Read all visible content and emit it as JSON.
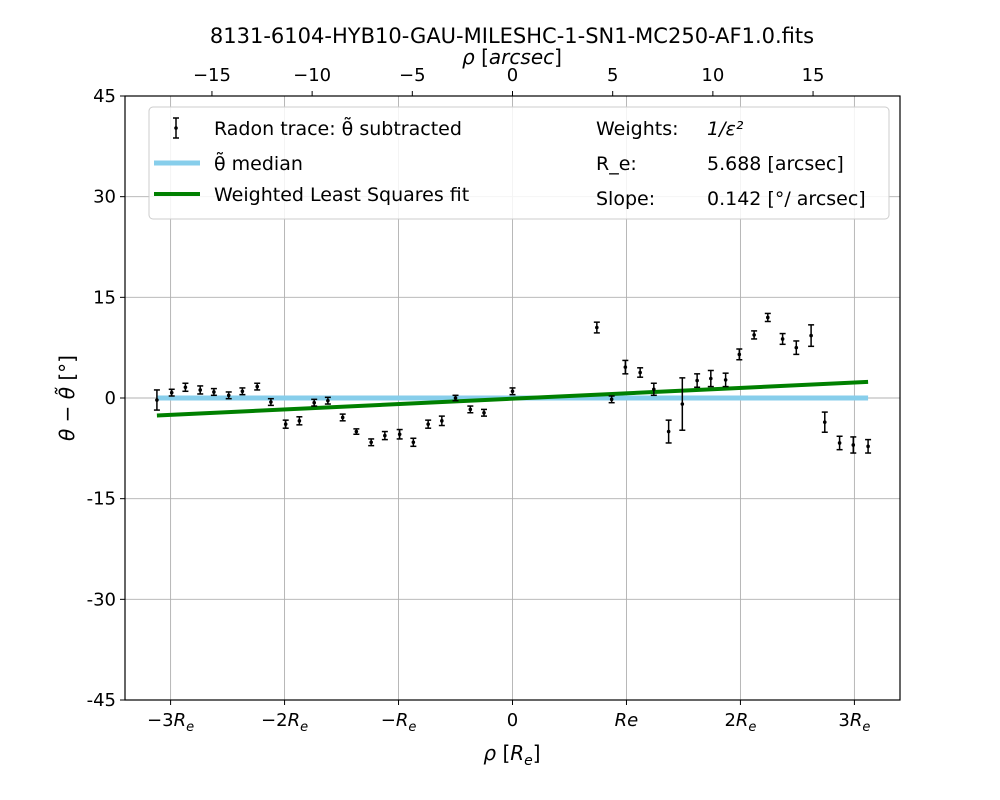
{
  "chart_data": {
    "type": "scatter",
    "title": "8131-6104-HYB10-GAU-MILESHC-1-SN1-MC250-AF1.0.fits",
    "xlabel": "ρ [R_e]",
    "ylabel": "θ − θ̃ [°]",
    "top_xlabel": "ρ [arcsec]",
    "xlim": [
      -3.4,
      3.4
    ],
    "ylim": [
      -45,
      45
    ],
    "grid": true,
    "legend_position": "top",
    "x_ticks": [
      {
        "value": -3,
        "label": "−3R_e"
      },
      {
        "value": -2,
        "label": "−2R_e"
      },
      {
        "value": -1,
        "label": "−R_e"
      },
      {
        "value": 0,
        "label": "0"
      },
      {
        "value": 1,
        "label": "Re"
      },
      {
        "value": 2,
        "label": "2R_e"
      },
      {
        "value": 3,
        "label": "3R_e"
      }
    ],
    "y_ticks": [
      {
        "value": 45,
        "label": "45"
      },
      {
        "value": 30,
        "label": "30"
      },
      {
        "value": 15,
        "label": "15"
      },
      {
        "value": 0,
        "label": "0"
      },
      {
        "value": -15,
        "label": "-15"
      },
      {
        "value": -30,
        "label": "-30"
      },
      {
        "value": -45,
        "label": "-45"
      }
    ],
    "top_ticks": [
      {
        "value": -15,
        "label": "−15"
      },
      {
        "value": -10,
        "label": "−10"
      },
      {
        "value": -5,
        "label": "−5"
      },
      {
        "value": 0,
        "label": "0"
      },
      {
        "value": 5,
        "label": "5"
      },
      {
        "value": 10,
        "label": "10"
      },
      {
        "value": 15,
        "label": "15"
      }
    ],
    "r_e_arcsec": 5.688,
    "series": [
      {
        "name": "Radon trace: θ̃ subtracted",
        "kind": "errorbar",
        "color": "#000000",
        "points": [
          {
            "x": -3.12,
            "y": -0.3,
            "err": 1.5
          },
          {
            "x": -2.99,
            "y": 0.8,
            "err": 0.5
          },
          {
            "x": -2.87,
            "y": 1.6,
            "err": 0.6
          },
          {
            "x": -2.74,
            "y": 1.2,
            "err": 0.6
          },
          {
            "x": -2.62,
            "y": 0.9,
            "err": 0.5
          },
          {
            "x": -2.49,
            "y": 0.4,
            "err": 0.5
          },
          {
            "x": -2.37,
            "y": 1.0,
            "err": 0.5
          },
          {
            "x": -2.24,
            "y": 1.7,
            "err": 0.5
          },
          {
            "x": -2.12,
            "y": -0.6,
            "err": 0.5
          },
          {
            "x": -1.99,
            "y": -3.9,
            "err": 0.6
          },
          {
            "x": -1.87,
            "y": -3.4,
            "err": 0.6
          },
          {
            "x": -1.74,
            "y": -0.7,
            "err": 0.5
          },
          {
            "x": -1.62,
            "y": -0.4,
            "err": 0.5
          },
          {
            "x": -1.49,
            "y": -2.9,
            "err": 0.5
          },
          {
            "x": -1.37,
            "y": -5.0,
            "err": 0.4
          },
          {
            "x": -1.24,
            "y": -6.6,
            "err": 0.5
          },
          {
            "x": -1.12,
            "y": -5.6,
            "err": 0.6
          },
          {
            "x": -0.99,
            "y": -5.4,
            "err": 0.7
          },
          {
            "x": -0.87,
            "y": -6.6,
            "err": 0.6
          },
          {
            "x": -0.74,
            "y": -3.9,
            "err": 0.6
          },
          {
            "x": -0.62,
            "y": -3.4,
            "err": 0.7
          },
          {
            "x": -0.5,
            "y": 0.0,
            "err": 0.4
          },
          {
            "x": -0.37,
            "y": -1.7,
            "err": 0.5
          },
          {
            "x": -0.25,
            "y": -2.2,
            "err": 0.5
          },
          {
            "x": 0.0,
            "y": 1.0,
            "err": 0.5
          },
          {
            "x": 0.74,
            "y": 10.5,
            "err": 0.8
          },
          {
            "x": 0.87,
            "y": -0.2,
            "err": 0.5
          },
          {
            "x": 0.99,
            "y": 4.6,
            "err": 1.0
          },
          {
            "x": 1.12,
            "y": 3.8,
            "err": 0.7
          },
          {
            "x": 1.24,
            "y": 1.3,
            "err": 0.9
          },
          {
            "x": 1.37,
            "y": -5.0,
            "err": 1.7
          },
          {
            "x": 1.49,
            "y": -0.9,
            "err": 3.9
          },
          {
            "x": 1.62,
            "y": 2.6,
            "err": 1.0
          },
          {
            "x": 1.74,
            "y": 2.9,
            "err": 1.2
          },
          {
            "x": 1.87,
            "y": 2.7,
            "err": 1.0
          },
          {
            "x": 1.99,
            "y": 6.5,
            "err": 0.8
          },
          {
            "x": 2.12,
            "y": 9.4,
            "err": 0.6
          },
          {
            "x": 2.24,
            "y": 12.0,
            "err": 0.6
          },
          {
            "x": 2.37,
            "y": 8.8,
            "err": 0.8
          },
          {
            "x": 2.49,
            "y": 7.5,
            "err": 1.0
          },
          {
            "x": 2.62,
            "y": 9.3,
            "err": 1.6
          },
          {
            "x": 2.74,
            "y": -3.6,
            "err": 1.5
          },
          {
            "x": 2.87,
            "y": -6.7,
            "err": 1.0
          },
          {
            "x": 2.99,
            "y": -7.0,
            "err": 1.2
          },
          {
            "x": 3.12,
            "y": -7.2,
            "err": 1.0
          }
        ]
      },
      {
        "name": "θ̃ median",
        "kind": "line",
        "color": "#87ceeb",
        "x": [
          -3.12,
          3.12
        ],
        "y": [
          0,
          0
        ]
      },
      {
        "name": "Weighted Least Squares fit",
        "kind": "line",
        "color": "#008000",
        "x": [
          -3.12,
          3.12
        ],
        "y": [
          -2.6,
          2.4
        ]
      }
    ],
    "legend_info": {
      "weights_label": "Weights:",
      "weights_value": "1/ε²",
      "re_label": "R_e:",
      "re_value": "5.688 [arcsec]",
      "slope_label": "Slope:",
      "slope_value": "0.142 [°/ arcsec]"
    }
  }
}
